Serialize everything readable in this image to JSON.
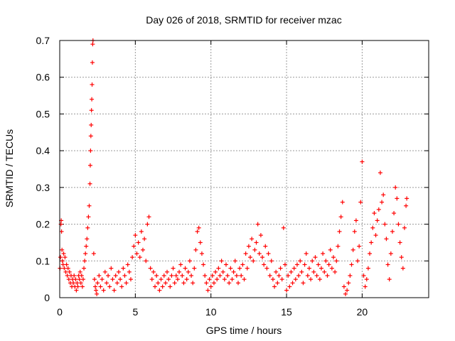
{
  "chart_data": {
    "type": "scatter",
    "title": "Day 026 of 2018, SRMTID for receiver mzac",
    "xlabel": "GPS time / hours",
    "ylabel": "SRMTID / TECUs",
    "xlim": [
      0,
      24.4
    ],
    "ylim": [
      0,
      0.7
    ],
    "x_ticks": [
      0,
      5,
      10,
      15,
      20
    ],
    "y_ticks": [
      0,
      0.1,
      0.2,
      0.3,
      0.4,
      0.5,
      0.6,
      0.7
    ],
    "x_tick_labels": [
      "0",
      "5",
      "10",
      "15",
      "20"
    ],
    "y_tick_labels": [
      "0",
      "0.1",
      "0.2",
      "0.3",
      "0.4",
      "0.5",
      "0.6",
      "0.7"
    ],
    "grid": true,
    "legend": "none",
    "marker": "plus",
    "series": [
      {
        "name": "SRMTID",
        "color": "#ff0000",
        "points": [
          [
            0.02,
            0.08
          ],
          [
            0.05,
            0.11
          ],
          [
            0.08,
            0.2
          ],
          [
            0.1,
            0.21
          ],
          [
            0.12,
            0.18
          ],
          [
            0.15,
            0.13
          ],
          [
            0.18,
            0.1
          ],
          [
            0.22,
            0.09
          ],
          [
            0.26,
            0.12
          ],
          [
            0.3,
            0.08
          ],
          [
            0.35,
            0.11
          ],
          [
            0.4,
            0.07
          ],
          [
            0.45,
            0.09
          ],
          [
            0.5,
            0.06
          ],
          [
            0.55,
            0.08
          ],
          [
            0.6,
            0.05
          ],
          [
            0.65,
            0.07
          ],
          [
            0.7,
            0.04
          ],
          [
            0.75,
            0.06
          ],
          [
            0.8,
            0.03
          ],
          [
            0.85,
            0.05
          ],
          [
            0.9,
            0.04
          ],
          [
            0.95,
            0.06
          ],
          [
            1.0,
            0.03
          ],
          [
            1.05,
            0.05
          ],
          [
            1.1,
            0.02
          ],
          [
            1.15,
            0.04
          ],
          [
            1.2,
            0.03
          ],
          [
            1.25,
            0.06
          ],
          [
            1.3,
            0.05
          ],
          [
            1.35,
            0.07
          ],
          [
            1.4,
            0.04
          ],
          [
            1.45,
            0.06
          ],
          [
            1.5,
            0.03
          ],
          [
            1.55,
            0.05
          ],
          [
            1.6,
            0.08
          ],
          [
            1.65,
            0.1
          ],
          [
            1.7,
            0.12
          ],
          [
            1.75,
            0.14
          ],
          [
            1.8,
            0.16
          ],
          [
            1.85,
            0.19
          ],
          [
            1.9,
            0.22
          ],
          [
            1.95,
            0.25
          ],
          [
            2.0,
            0.31
          ],
          [
            2.02,
            0.36
          ],
          [
            2.04,
            0.4
          ],
          [
            2.06,
            0.44
          ],
          [
            2.08,
            0.47
          ],
          [
            2.1,
            0.51
          ],
          [
            2.12,
            0.54
          ],
          [
            2.14,
            0.58
          ],
          [
            2.16,
            0.64
          ],
          [
            2.18,
            0.69
          ],
          [
            2.2,
            0.7
          ],
          [
            2.25,
            0.12
          ],
          [
            2.3,
            0.05
          ],
          [
            2.35,
            0.03
          ],
          [
            2.4,
            0.02
          ],
          [
            2.45,
            0.01
          ],
          [
            2.5,
            0.04
          ],
          [
            2.6,
            0.06
          ],
          [
            2.7,
            0.03
          ],
          [
            2.8,
            0.05
          ],
          [
            2.9,
            0.02
          ],
          [
            3.0,
            0.07
          ],
          [
            3.1,
            0.04
          ],
          [
            3.2,
            0.06
          ],
          [
            3.3,
            0.03
          ],
          [
            3.4,
            0.08
          ],
          [
            3.5,
            0.05
          ],
          [
            3.6,
            0.02
          ],
          [
            3.7,
            0.06
          ],
          [
            3.8,
            0.04
          ],
          [
            3.9,
            0.07
          ],
          [
            4.0,
            0.05
          ],
          [
            4.1,
            0.03
          ],
          [
            4.2,
            0.08
          ],
          [
            4.3,
            0.06
          ],
          [
            4.4,
            0.04
          ],
          [
            4.5,
            0.09
          ],
          [
            4.6,
            0.07
          ],
          [
            4.7,
            0.05
          ],
          [
            4.8,
            0.11
          ],
          [
            4.9,
            0.14
          ],
          [
            5.0,
            0.17
          ],
          [
            5.1,
            0.12
          ],
          [
            5.2,
            0.15
          ],
          [
            5.3,
            0.11
          ],
          [
            5.4,
            0.18
          ],
          [
            5.5,
            0.13
          ],
          [
            5.6,
            0.16
          ],
          [
            5.7,
            0.1
          ],
          [
            5.8,
            0.2
          ],
          [
            5.9,
            0.22
          ],
          [
            6.0,
            0.08
          ],
          [
            6.1,
            0.05
          ],
          [
            6.2,
            0.07
          ],
          [
            6.3,
            0.03
          ],
          [
            6.4,
            0.06
          ],
          [
            6.5,
            0.04
          ],
          [
            6.6,
            0.02
          ],
          [
            6.7,
            0.05
          ],
          [
            6.8,
            0.03
          ],
          [
            6.9,
            0.06
          ],
          [
            7.0,
            0.04
          ],
          [
            7.1,
            0.07
          ],
          [
            7.2,
            0.05
          ],
          [
            7.3,
            0.03
          ],
          [
            7.4,
            0.06
          ],
          [
            7.5,
            0.08
          ],
          [
            7.6,
            0.04
          ],
          [
            7.7,
            0.06
          ],
          [
            7.8,
            0.05
          ],
          [
            7.9,
            0.07
          ],
          [
            8.0,
            0.09
          ],
          [
            8.1,
            0.06
          ],
          [
            8.2,
            0.04
          ],
          [
            8.3,
            0.08
          ],
          [
            8.4,
            0.05
          ],
          [
            8.5,
            0.07
          ],
          [
            8.6,
            0.1
          ],
          [
            8.7,
            0.06
          ],
          [
            8.8,
            0.04
          ],
          [
            8.9,
            0.08
          ],
          [
            9.0,
            0.13
          ],
          [
            9.1,
            0.18
          ],
          [
            9.2,
            0.19
          ],
          [
            9.3,
            0.15
          ],
          [
            9.4,
            0.12
          ],
          [
            9.5,
            0.09
          ],
          [
            9.6,
            0.06
          ],
          [
            9.7,
            0.04
          ],
          [
            9.8,
            0.02
          ],
          [
            9.9,
            0.05
          ],
          [
            10.0,
            0.03
          ],
          [
            10.1,
            0.06
          ],
          [
            10.2,
            0.04
          ],
          [
            10.3,
            0.07
          ],
          [
            10.4,
            0.05
          ],
          [
            10.5,
            0.08
          ],
          [
            10.6,
            0.06
          ],
          [
            10.7,
            0.1
          ],
          [
            10.8,
            0.07
          ],
          [
            10.9,
            0.05
          ],
          [
            11.0,
            0.09
          ],
          [
            11.1,
            0.06
          ],
          [
            11.2,
            0.04
          ],
          [
            11.3,
            0.08
          ],
          [
            11.4,
            0.05
          ],
          [
            11.5,
            0.07
          ],
          [
            11.6,
            0.1
          ],
          [
            11.7,
            0.06
          ],
          [
            11.8,
            0.04
          ],
          [
            11.9,
            0.08
          ],
          [
            12.0,
            0.06
          ],
          [
            12.1,
            0.09
          ],
          [
            12.2,
            0.05
          ],
          [
            12.3,
            0.12
          ],
          [
            12.4,
            0.08
          ],
          [
            12.5,
            0.14
          ],
          [
            12.6,
            0.11
          ],
          [
            12.7,
            0.16
          ],
          [
            12.8,
            0.1
          ],
          [
            12.9,
            0.13
          ],
          [
            13.0,
            0.15
          ],
          [
            13.1,
            0.2
          ],
          [
            13.2,
            0.12
          ],
          [
            13.3,
            0.17
          ],
          [
            13.4,
            0.11
          ],
          [
            13.5,
            0.09
          ],
          [
            13.6,
            0.14
          ],
          [
            13.7,
            0.08
          ],
          [
            13.8,
            0.12
          ],
          [
            13.9,
            0.06
          ],
          [
            14.0,
            0.1
          ],
          [
            14.1,
            0.05
          ],
          [
            14.2,
            0.03
          ],
          [
            14.3,
            0.07
          ],
          [
            14.4,
            0.04
          ],
          [
            14.5,
            0.06
          ],
          [
            14.6,
            0.08
          ],
          [
            14.7,
            0.05
          ],
          [
            14.8,
            0.19
          ],
          [
            14.9,
            0.09
          ],
          [
            15.0,
            0.02
          ],
          [
            15.1,
            0.06
          ],
          [
            15.2,
            0.03
          ],
          [
            15.3,
            0.07
          ],
          [
            15.4,
            0.04
          ],
          [
            15.5,
            0.08
          ],
          [
            15.6,
            0.05
          ],
          [
            15.7,
            0.09
          ],
          [
            15.8,
            0.06
          ],
          [
            15.9,
            0.1
          ],
          [
            16.0,
            0.07
          ],
          [
            16.1,
            0.04
          ],
          [
            16.2,
            0.09
          ],
          [
            16.3,
            0.12
          ],
          [
            16.4,
            0.06
          ],
          [
            16.5,
            0.08
          ],
          [
            16.6,
            0.05
          ],
          [
            16.7,
            0.1
          ],
          [
            16.8,
            0.07
          ],
          [
            16.9,
            0.11
          ],
          [
            17.0,
            0.06
          ],
          [
            17.1,
            0.09
          ],
          [
            17.2,
            0.05
          ],
          [
            17.3,
            0.08
          ],
          [
            17.4,
            0.12
          ],
          [
            17.5,
            0.07
          ],
          [
            17.6,
            0.1
          ],
          [
            17.7,
            0.06
          ],
          [
            17.8,
            0.09
          ],
          [
            17.9,
            0.13
          ],
          [
            18.0,
            0.08
          ],
          [
            18.1,
            0.11
          ],
          [
            18.2,
            0.07
          ],
          [
            18.3,
            0.1
          ],
          [
            18.4,
            0.14
          ],
          [
            18.5,
            0.18
          ],
          [
            18.6,
            0.22
          ],
          [
            18.7,
            0.26
          ],
          [
            18.8,
            0.03
          ],
          [
            18.9,
            0.01
          ],
          [
            19.0,
            0.02
          ],
          [
            19.1,
            0.04
          ],
          [
            19.2,
            0.06
          ],
          [
            19.3,
            0.09
          ],
          [
            19.4,
            0.13
          ],
          [
            19.5,
            0.18
          ],
          [
            19.6,
            0.21
          ],
          [
            19.7,
            0.1
          ],
          [
            19.8,
            0.14
          ],
          [
            19.9,
            0.26
          ],
          [
            20.0,
            0.37
          ],
          [
            20.1,
            0.06
          ],
          [
            20.2,
            0.03
          ],
          [
            20.3,
            0.05
          ],
          [
            20.4,
            0.08
          ],
          [
            20.5,
            0.12
          ],
          [
            20.6,
            0.15
          ],
          [
            20.7,
            0.19
          ],
          [
            20.8,
            0.23
          ],
          [
            20.9,
            0.17
          ],
          [
            21.0,
            0.21
          ],
          [
            21.1,
            0.24
          ],
          [
            21.2,
            0.34
          ],
          [
            21.3,
            0.26
          ],
          [
            21.4,
            0.28
          ],
          [
            21.5,
            0.2
          ],
          [
            21.6,
            0.16
          ],
          [
            21.7,
            0.09
          ],
          [
            21.8,
            0.05
          ],
          [
            21.9,
            0.12
          ],
          [
            22.0,
            0.18
          ],
          [
            22.1,
            0.23
          ],
          [
            22.2,
            0.3
          ],
          [
            22.3,
            0.27
          ],
          [
            22.4,
            0.2
          ],
          [
            22.5,
            0.15
          ],
          [
            22.6,
            0.11
          ],
          [
            22.7,
            0.08
          ],
          [
            22.8,
            0.19
          ],
          [
            22.9,
            0.25
          ],
          [
            22.95,
            0.27
          ]
        ]
      }
    ]
  }
}
